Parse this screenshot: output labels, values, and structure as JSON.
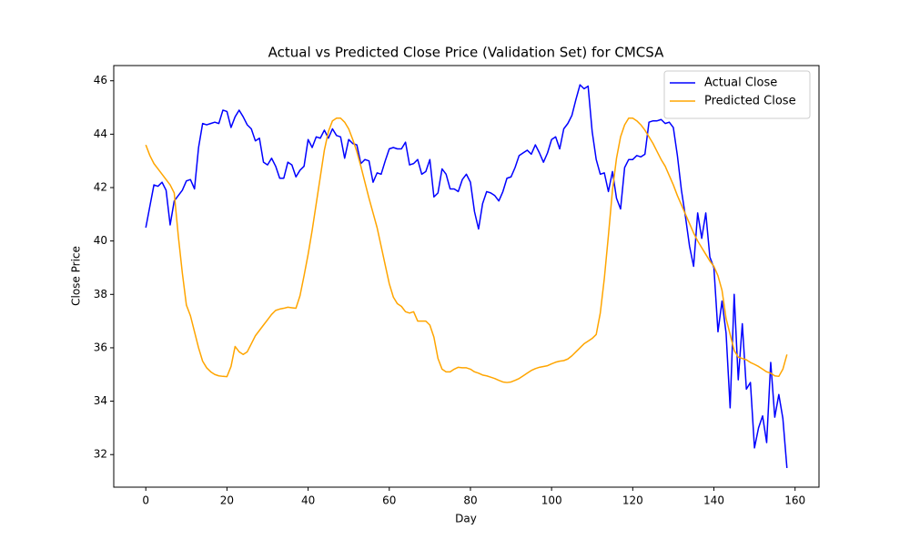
{
  "chart_data": {
    "type": "line",
    "title": "Actual vs Predicted Close Price (Validation Set) for CMCSA",
    "xlabel": "Day",
    "ylabel": "Close Price",
    "x": [
      0,
      1,
      2,
      3,
      4,
      5,
      6,
      7,
      8,
      9,
      10,
      11,
      12,
      13,
      14,
      15,
      16,
      17,
      18,
      19,
      20,
      21,
      22,
      23,
      24,
      25,
      26,
      27,
      28,
      29,
      30,
      31,
      32,
      33,
      34,
      35,
      36,
      37,
      38,
      39,
      40,
      41,
      42,
      43,
      44,
      45,
      46,
      47,
      48,
      49,
      50,
      51,
      52,
      53,
      54,
      55,
      56,
      57,
      58,
      59,
      60,
      61,
      62,
      63,
      64,
      65,
      66,
      67,
      68,
      69,
      70,
      71,
      72,
      73,
      74,
      75,
      76,
      77,
      78,
      79,
      80,
      81,
      82,
      83,
      84,
      85,
      86,
      87,
      88,
      89,
      90,
      91,
      92,
      93,
      94,
      95,
      96,
      97,
      98,
      99,
      100,
      101,
      102,
      103,
      104,
      105,
      106,
      107,
      108,
      109,
      110,
      111,
      112,
      113,
      114,
      115,
      116,
      117,
      118,
      119,
      120,
      121,
      122,
      123,
      124,
      125,
      126,
      127,
      128,
      129,
      130,
      131,
      132,
      133,
      134,
      135,
      136,
      137,
      138,
      139,
      140,
      141,
      142,
      143,
      144,
      145,
      146,
      147,
      148,
      149,
      150,
      151,
      152,
      153,
      154,
      155,
      156,
      157,
      158
    ],
    "series": [
      {
        "name": "Actual Close",
        "color": "#0000ff",
        "values": [
          40.5,
          41.3,
          42.1,
          42.05,
          42.2,
          41.9,
          40.6,
          41.5,
          41.7,
          41.9,
          42.25,
          42.3,
          41.95,
          43.5,
          44.4,
          44.35,
          44.4,
          44.45,
          44.4,
          44.9,
          44.85,
          44.25,
          44.65,
          44.9,
          44.65,
          44.35,
          44.2,
          43.75,
          43.85,
          42.95,
          42.85,
          43.1,
          42.8,
          42.35,
          42.35,
          42.95,
          42.85,
          42.4,
          42.65,
          42.8,
          43.8,
          43.5,
          43.9,
          43.85,
          44.15,
          43.85,
          44.2,
          43.95,
          43.9,
          43.1,
          43.8,
          43.65,
          43.6,
          42.9,
          43.05,
          43.0,
          42.2,
          42.55,
          42.5,
          43.0,
          43.45,
          43.5,
          43.45,
          43.45,
          43.7,
          42.85,
          42.9,
          43.05,
          42.5,
          42.6,
          43.05,
          41.65,
          41.8,
          42.7,
          42.5,
          41.95,
          41.95,
          41.85,
          42.3,
          42.5,
          42.2,
          41.1,
          40.45,
          41.4,
          41.85,
          41.8,
          41.7,
          41.5,
          41.85,
          42.35,
          42.4,
          42.75,
          43.2,
          43.3,
          43.4,
          43.25,
          43.6,
          43.3,
          42.95,
          43.3,
          43.8,
          43.9,
          43.45,
          44.2,
          44.4,
          44.7,
          45.3,
          45.85,
          45.7,
          45.8,
          44.1,
          43.05,
          42.5,
          42.55,
          41.85,
          42.6,
          41.6,
          41.2,
          42.75,
          43.05,
          43.05,
          43.2,
          43.15,
          43.25,
          44.45,
          44.5,
          44.5,
          44.55,
          44.4,
          44.45,
          44.25,
          43.2,
          41.9,
          40.9,
          39.8,
          39.05,
          41.05,
          40.1,
          41.05,
          39.4,
          39.0,
          36.6,
          37.75,
          36.55,
          33.75,
          38.0,
          34.8,
          36.9,
          34.45,
          34.7,
          32.25,
          33.0,
          33.45,
          32.45,
          35.45,
          33.4,
          34.25,
          33.35,
          31.5
        ]
      },
      {
        "name": "Predicted Close",
        "color": "#ffa500",
        "values": [
          43.6,
          43.2,
          42.9,
          42.7,
          42.5,
          42.3,
          42.1,
          41.8,
          40.2,
          38.8,
          37.6,
          37.2,
          36.6,
          36.0,
          35.5,
          35.25,
          35.1,
          35.0,
          34.95,
          34.93,
          34.92,
          35.3,
          36.05,
          35.85,
          35.75,
          35.85,
          36.15,
          36.45,
          36.65,
          36.85,
          37.05,
          37.25,
          37.4,
          37.45,
          37.48,
          37.52,
          37.5,
          37.48,
          37.95,
          38.7,
          39.5,
          40.4,
          41.4,
          42.4,
          43.4,
          44.1,
          44.5,
          44.6,
          44.6,
          44.45,
          44.2,
          43.8,
          43.35,
          42.8,
          42.2,
          41.6,
          41.05,
          40.5,
          39.8,
          39.1,
          38.4,
          37.9,
          37.65,
          37.55,
          37.35,
          37.3,
          37.35,
          37.0,
          37.0,
          37.0,
          36.85,
          36.4,
          35.6,
          35.2,
          35.1,
          35.1,
          35.2,
          35.27,
          35.25,
          35.25,
          35.2,
          35.1,
          35.05,
          34.98,
          34.95,
          34.9,
          34.85,
          34.78,
          34.72,
          34.7,
          34.72,
          34.78,
          34.85,
          34.95,
          35.05,
          35.15,
          35.22,
          35.27,
          35.3,
          35.33,
          35.4,
          35.46,
          35.5,
          35.52,
          35.58,
          35.7,
          35.85,
          36.0,
          36.15,
          36.25,
          36.35,
          36.5,
          37.3,
          38.6,
          40.2,
          41.9,
          43.1,
          43.9,
          44.35,
          44.6,
          44.6,
          44.5,
          44.35,
          44.15,
          43.9,
          43.65,
          43.35,
          43.05,
          42.8,
          42.45,
          42.1,
          41.7,
          41.35,
          41.0,
          40.65,
          40.3,
          40.0,
          39.75,
          39.5,
          39.25,
          39.05,
          38.7,
          38.15,
          37.1,
          36.5,
          35.9,
          35.65,
          35.6,
          35.55,
          35.45,
          35.38,
          35.3,
          35.2,
          35.1,
          35.05,
          34.95,
          34.93,
          35.2,
          35.75
        ]
      }
    ],
    "xlim": [
      -7.9,
      165.9
    ],
    "ylim": [
      30.78,
      46.57
    ],
    "xticks": [
      0,
      20,
      40,
      60,
      80,
      100,
      120,
      140,
      160
    ],
    "yticks": [
      32,
      34,
      36,
      38,
      40,
      42,
      44,
      46
    ],
    "legend": "upper right",
    "grid": false
  }
}
